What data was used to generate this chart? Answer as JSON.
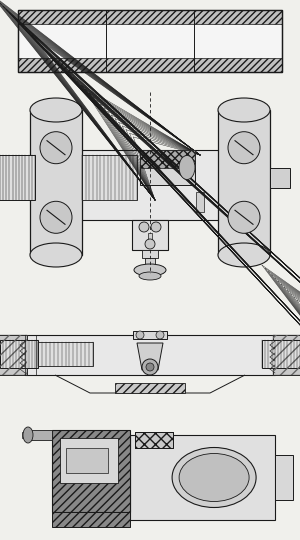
{
  "background_color": "#f0f0ec",
  "line_color": "#1a1a1a",
  "fig_width": 3.0,
  "fig_height": 5.4,
  "dpi": 100
}
